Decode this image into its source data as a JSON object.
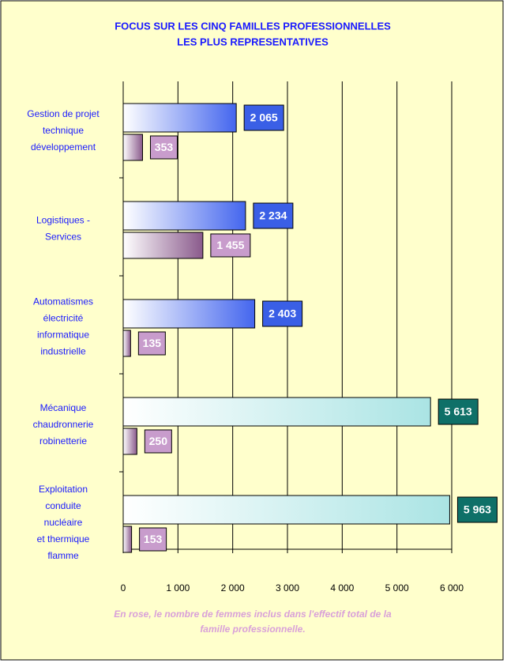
{
  "chart_data": {
    "type": "hbar",
    "title": [
      "FOCUS SUR LES CINQ FAMILLES PROFESSIONNELLES",
      "LES PLUS REPRESENTATIVES"
    ],
    "categories": [
      [
        "Gestion de projet",
        "technique",
        "développement"
      ],
      [
        "Logistiques -",
        "Services"
      ],
      [
        "Automatismes",
        "électricité",
        "informatique",
        "industrielle"
      ],
      [
        "Mécanique",
        "chaudronnerie",
        "robinetterie"
      ],
      [
        "Exploitation",
        "conduite",
        "nucléaire",
        "et thermique",
        "flamme"
      ]
    ],
    "series": [
      {
        "values": [
          2065,
          2234,
          2403,
          5613,
          5963
        ],
        "value_labels": [
          "2 065",
          "2 234",
          "2 403",
          "5 613",
          "5 963"
        ],
        "colors": [
          "#4466ee",
          "#4466ee",
          "#4466ee",
          "#aae4e4",
          "#aae4e4"
        ],
        "label_colors": [
          "#3a5fe6",
          "#3a5fe6",
          "#3a5fe6",
          "#0f7068",
          "#0f7068"
        ]
      },
      {
        "values": [
          353,
          1455,
          135,
          250,
          153
        ],
        "value_labels": [
          "353",
          "1 455",
          "135",
          "250",
          "153"
        ],
        "colors": [
          "#8a5a8c",
          "#8a5a8c",
          "#8a5a8c",
          "#8a5a8c",
          "#8a5a8c"
        ],
        "label_colors": [
          "#c89ccc",
          "#c89ccc",
          "#c89ccc",
          "#c89ccc",
          "#c89ccc"
        ]
      }
    ],
    "xlim": [
      0,
      6000
    ],
    "xticks": [
      0,
      {
        "value": 1000,
        "label": "1 000"
      },
      {
        "value": 2000,
        "label": "2 000"
      },
      {
        "value": 3000,
        "label": "3 000"
      },
      {
        "value": 4000,
        "label": "4 000"
      },
      {
        "value": 5000,
        "label": "5 000"
      },
      {
        "value": 6000,
        "label": "6 000"
      }
    ],
    "grid": true,
    "footnote": [
      "En rose, le nombre de femmes inclus dans l'effectif total de la",
      "famille professionnelle."
    ]
  }
}
